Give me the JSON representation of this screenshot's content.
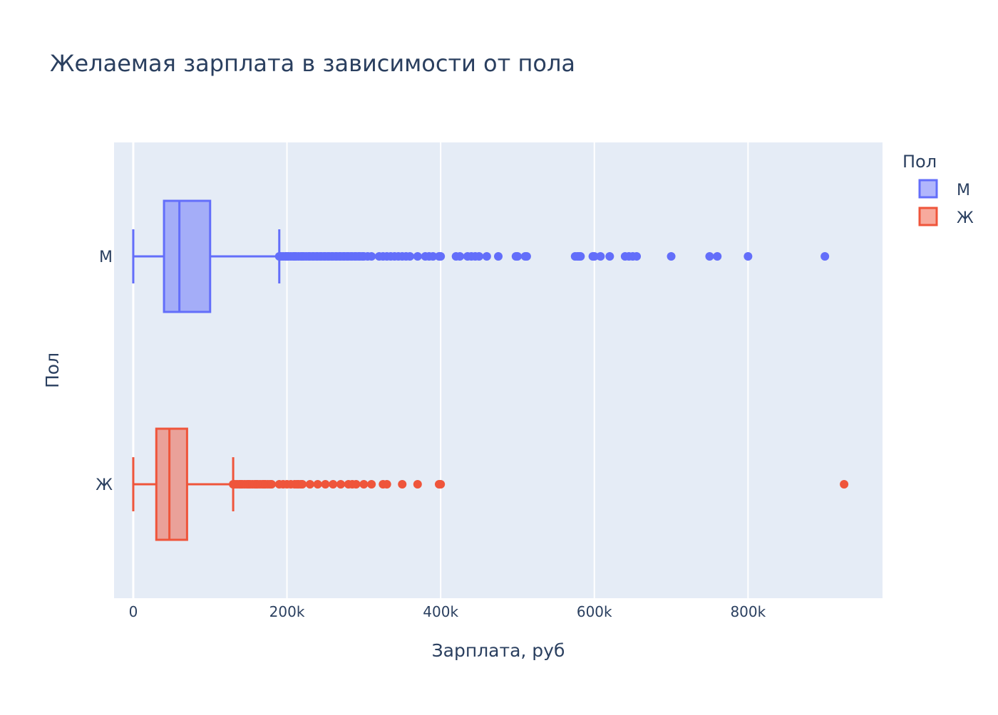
{
  "chart_data": {
    "type": "box",
    "orientation": "horizontal",
    "title": "Желаемая зарплата в зависимости от пола",
    "xlabel": "Зарплата, руб",
    "ylabel": "Пол",
    "xlim": [
      -25000,
      975000
    ],
    "x_ticks": [
      0,
      200000,
      400000,
      600000,
      800000
    ],
    "x_tick_labels": [
      "0",
      "200k",
      "400k",
      "600k",
      "800k"
    ],
    "grid": true,
    "legend": {
      "title": "Пол",
      "placement": "top-right"
    },
    "series": [
      {
        "name": "М",
        "color": "#636efa",
        "min": 0,
        "q1": 40000,
        "median": 60000,
        "q3": 100000,
        "upper_fence": 190000,
        "outliers": [
          190000,
          192000,
          195000,
          198000,
          200000,
          202000,
          205000,
          208000,
          210000,
          212000,
          215000,
          218000,
          220000,
          222000,
          225000,
          228000,
          230000,
          233000,
          235000,
          238000,
          240000,
          243000,
          245000,
          248000,
          250000,
          253000,
          255000,
          258000,
          260000,
          263000,
          265000,
          268000,
          270000,
          273000,
          275000,
          278000,
          280000,
          283000,
          285000,
          288000,
          290000,
          293000,
          295000,
          298000,
          300000,
          305000,
          310000,
          320000,
          325000,
          330000,
          335000,
          340000,
          345000,
          350000,
          355000,
          360000,
          370000,
          380000,
          385000,
          390000,
          398000,
          400000,
          420000,
          425000,
          435000,
          440000,
          445000,
          450000,
          460000,
          475000,
          498000,
          500000,
          510000,
          512000,
          575000,
          578000,
          580000,
          582000,
          598000,
          600000,
          608000,
          620000,
          640000,
          645000,
          650000,
          655000,
          700000,
          750000,
          760000,
          800000,
          900000
        ]
      },
      {
        "name": "Ж",
        "color": "#ef553b",
        "min": 0,
        "q1": 30000,
        "median": 47000,
        "q3": 70000,
        "upper_fence": 130000,
        "outliers": [
          130000,
          132000,
          135000,
          138000,
          140000,
          142000,
          145000,
          148000,
          150000,
          152000,
          155000,
          158000,
          160000,
          162000,
          165000,
          168000,
          170000,
          172000,
          175000,
          178000,
          180000,
          190000,
          195000,
          200000,
          205000,
          210000,
          213000,
          215000,
          218000,
          220000,
          230000,
          240000,
          250000,
          260000,
          270000,
          280000,
          285000,
          290000,
          300000,
          310000,
          325000,
          330000,
          350000,
          370000,
          398000,
          400000,
          925000
        ]
      }
    ]
  }
}
